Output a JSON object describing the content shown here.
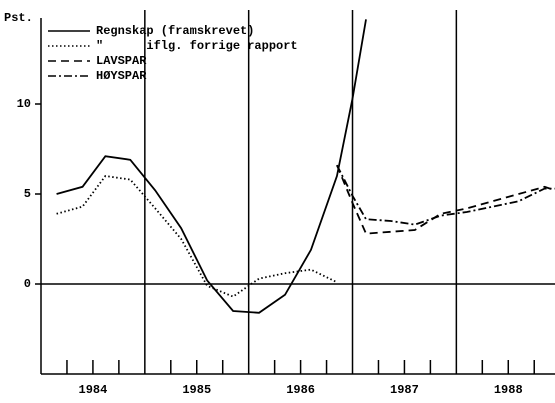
{
  "chart_data": {
    "type": "line",
    "ylabel": "Pst.",
    "xlim": [
      1984,
      1988.95
    ],
    "ylim": [
      -5,
      15
    ],
    "yticks": [
      0,
      5,
      10
    ],
    "xticks": [
      {
        "value": 1984.5,
        "label": "1984"
      },
      {
        "value": 1985.5,
        "label": "1985"
      },
      {
        "value": 1986.5,
        "label": "1986"
      },
      {
        "value": 1987.5,
        "label": "1987"
      },
      {
        "value": 1988.5,
        "label": "1988"
      }
    ],
    "xgrid": [
      1985,
      1986,
      1987,
      1988
    ],
    "xminor_ticks": [
      1984.25,
      1984.5,
      1984.75,
      1985.25,
      1985.5,
      1985.75,
      1986.25,
      1986.5,
      1986.75,
      1987.25,
      1987.5,
      1987.75,
      1988.25,
      1988.5,
      1988.75
    ],
    "legend": "upper left",
    "series": [
      {
        "name": "Regnskap (framskrevet)",
        "color": "#000",
        "dash": "none",
        "x": [
          1984.15,
          1984.4,
          1984.62,
          1984.86,
          1985.1,
          1985.35,
          1985.6,
          1985.85,
          1986.1,
          1986.35,
          1986.6,
          1986.85,
          1987.0,
          1987.13
        ],
        "values": [
          5.0,
          5.4,
          7.1,
          6.9,
          5.2,
          3.1,
          0.2,
          -1.5,
          -1.6,
          -0.6,
          1.9,
          6.0,
          10.3,
          14.7
        ]
      },
      {
        "name": "\"      iflg. forrige rapport",
        "color": "#000",
        "dash": "1.5 2.5",
        "x": [
          1984.15,
          1984.4,
          1984.62,
          1984.86,
          1985.1,
          1985.35,
          1985.6,
          1985.85,
          1986.1,
          1986.35,
          1986.6,
          1986.85
        ],
        "values": [
          3.9,
          4.3,
          6.0,
          5.8,
          4.2,
          2.5,
          -0.1,
          -0.7,
          0.3,
          0.6,
          0.8,
          0.1
        ]
      },
      {
        "name": "LAVSPAR",
        "color": "#000",
        "dash": "8 5",
        "x": [
          1986.85,
          1987.0,
          1987.13,
          1987.37,
          1987.6,
          1987.85,
          1988.1,
          1988.35,
          1988.6,
          1988.85,
          1988.95
        ],
        "values": [
          6.6,
          4.5,
          2.8,
          2.9,
          3.0,
          3.9,
          4.2,
          4.6,
          5.0,
          5.4,
          5.2
        ]
      },
      {
        "name": "HØYSPAR",
        "color": "#000",
        "dash": "8 3 2 3",
        "x": [
          1986.85,
          1987.0,
          1987.13,
          1987.37,
          1987.6,
          1987.85,
          1988.1,
          1988.35,
          1988.6,
          1988.85,
          1988.95
        ],
        "values": [
          6.6,
          4.9,
          3.6,
          3.5,
          3.3,
          3.8,
          4.0,
          4.3,
          4.6,
          5.3,
          5.3
        ]
      }
    ]
  }
}
